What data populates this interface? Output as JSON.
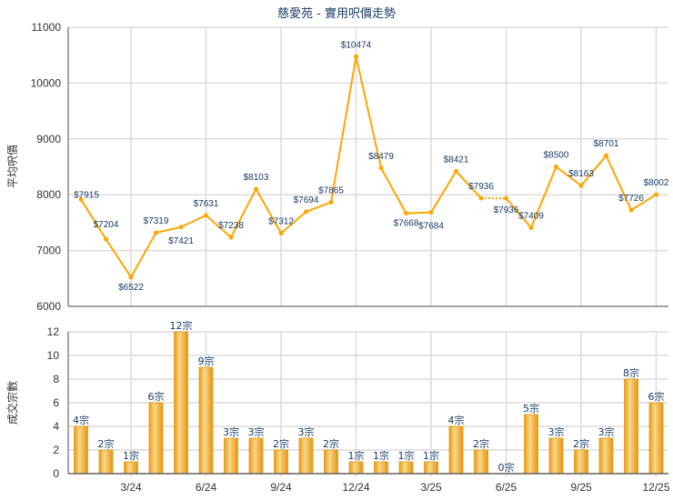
{
  "chart_data": [
    {
      "type": "line",
      "title": "慈愛苑 - 實用呎價走勢",
      "ylabel": "平均呎價",
      "xlabel": "",
      "ylim": [
        6000,
        11000
      ],
      "yticks": [
        "6000",
        "7000",
        "8000",
        "9000",
        "10000",
        "11000"
      ],
      "x": [
        "1/24",
        "2/24",
        "3/24",
        "4/24",
        "5/24",
        "6/24",
        "7/24",
        "8/24",
        "9/24",
        "10/24",
        "11/24",
        "12/24",
        "1/25",
        "2/25",
        "3/25",
        "4/25",
        "5/25",
        "6/25",
        "7/25",
        "8/25",
        "9/25",
        "10/25",
        "11/25",
        "12/25"
      ],
      "xticks": [
        "3/24",
        "6/24",
        "9/24",
        "12/24",
        "3/25",
        "6/25",
        "9/25",
        "12/25"
      ],
      "values": [
        7915,
        7204,
        6522,
        7319,
        7421,
        7631,
        7238,
        8103,
        7312,
        7694,
        7865,
        10474,
        8479,
        7668,
        7684,
        8421,
        7936,
        7936,
        7409,
        8500,
        8163,
        8701,
        7726,
        8002
      ],
      "labels": [
        "$7915",
        "$7204",
        "$6522",
        "$7319",
        "$7421",
        "$7631",
        "$7238",
        "$8103",
        "$7312",
        "$7694",
        "$7865",
        "$10474",
        "$8479",
        "$7668",
        "$7684",
        "$8421",
        "$7936",
        "$7936",
        "$7409",
        "$8500",
        "$8163",
        "$8701",
        "$7726",
        "$8002"
      ],
      "interpolated_index": 17,
      "grid": true,
      "color": "#ffa500"
    },
    {
      "type": "bar",
      "ylabel": "成交宗數",
      "ylim": [
        0,
        12
      ],
      "yticks": [
        "0",
        "2",
        "4",
        "6",
        "8",
        "10",
        "12"
      ],
      "categories": [
        "1/24",
        "2/24",
        "3/24",
        "4/24",
        "5/24",
        "6/24",
        "7/24",
        "8/24",
        "9/24",
        "10/24",
        "11/24",
        "12/24",
        "1/25",
        "2/25",
        "3/25",
        "4/25",
        "5/25",
        "6/25",
        "7/25",
        "8/25",
        "9/25",
        "10/25",
        "11/25",
        "12/25"
      ],
      "xticks": [
        "3/24",
        "6/24",
        "9/24",
        "12/24",
        "3/25",
        "6/25",
        "9/25",
        "12/25"
      ],
      "values": [
        4,
        2,
        1,
        6,
        12,
        9,
        3,
        3,
        2,
        3,
        2,
        1,
        1,
        1,
        1,
        4,
        2,
        0,
        5,
        3,
        2,
        3,
        8,
        6
      ],
      "labels": [
        "4宗",
        "2宗",
        "1宗",
        "6宗",
        "12宗",
        "9宗",
        "3宗",
        "3宗",
        "2宗",
        "3宗",
        "2宗",
        "1宗",
        "1宗",
        "1宗",
        "1宗",
        "4宗",
        "2宗",
        "0宗",
        "5宗",
        "3宗",
        "2宗",
        "3宗",
        "8宗",
        "6宗"
      ],
      "grid": true,
      "color": "#f0a820"
    }
  ]
}
